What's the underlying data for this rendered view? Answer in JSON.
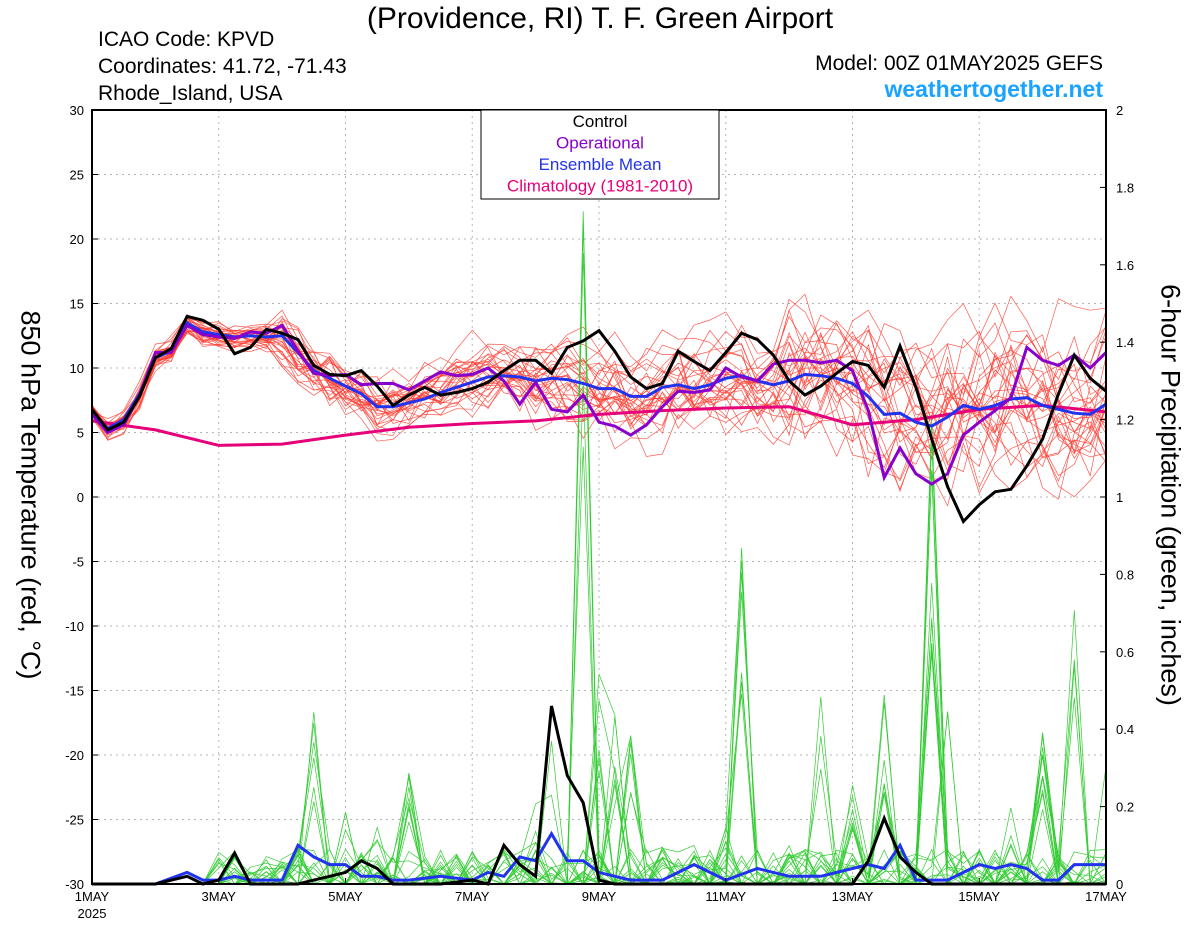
{
  "header": {
    "title": "(Providence, RI) T. F. Green Airport",
    "icao": "ICAO Code: KPVD",
    "coordinates": "Coordinates: 41.72, -71.43",
    "region": "Rhode_Island, USA",
    "model": "Model: 00Z 01MAY2025 GEFS",
    "website": "weathertogether.net"
  },
  "chart_data": {
    "type": "line",
    "title": "(Providence, RI) T. F. Green Airport",
    "ylabel": "850 hPa Temperature (red, °C)",
    "y2label": "6-hour Precipitation (green, inches)",
    "ylim": [
      -30,
      30
    ],
    "y2lim": [
      0,
      2
    ],
    "x_unit": "days since 1MAY 2025 00Z",
    "xlim": [
      0,
      16
    ],
    "x_ticks": [
      {
        "x": 0,
        "label": "1MAY",
        "sub": "2025"
      },
      {
        "x": 2,
        "label": "3MAY",
        "sub": ""
      },
      {
        "x": 4,
        "label": "5MAY",
        "sub": ""
      },
      {
        "x": 6,
        "label": "7MAY",
        "sub": ""
      },
      {
        "x": 8,
        "label": "9MAY",
        "sub": ""
      },
      {
        "x": 10,
        "label": "11MAY",
        "sub": ""
      },
      {
        "x": 12,
        "label": "13MAY",
        "sub": ""
      },
      {
        "x": 14,
        "label": "15MAY",
        "sub": ""
      },
      {
        "x": 16,
        "label": "17MAY",
        "sub": ""
      }
    ],
    "y_ticks": [
      -30,
      -25,
      -20,
      -15,
      -10,
      -5,
      0,
      5,
      10,
      15,
      20,
      25,
      30
    ],
    "y2_ticks": [
      0,
      0.2,
      0.4,
      0.6,
      0.8,
      1,
      1.2,
      1.4,
      1.6,
      1.8,
      2
    ],
    "grid": true,
    "legend": {
      "position": "top-center",
      "items": [
        {
          "label": "Control",
          "color": "#000000"
        },
        {
          "label": "Operational",
          "color": "#8800cc"
        },
        {
          "label": "Ensemble Mean",
          "color": "#2233ee"
        },
        {
          "label": "Climatology (1981-2010)",
          "color": "#e6007a"
        }
      ]
    },
    "colors": {
      "members_temp": "#ff3b30",
      "members_precip": "#33cc33",
      "control": "#000000",
      "operational": "#8800cc",
      "mean": "#2233ee",
      "climatology": "#e6007a"
    },
    "temperature": {
      "control": [
        [
          0,
          6.8
        ],
        [
          0.25,
          5.2
        ],
        [
          0.5,
          5.8
        ],
        [
          0.75,
          7.8
        ],
        [
          1,
          10.8
        ],
        [
          1.25,
          11.5
        ],
        [
          1.5,
          14
        ],
        [
          1.75,
          13.7
        ],
        [
          2,
          13
        ],
        [
          2.25,
          11.1
        ],
        [
          2.5,
          11.6
        ],
        [
          2.75,
          13
        ],
        [
          3,
          12.7
        ],
        [
          3.25,
          12.2
        ],
        [
          3.5,
          10.2
        ],
        [
          3.75,
          9.5
        ],
        [
          4,
          9.4
        ],
        [
          4.25,
          9.8
        ],
        [
          4.5,
          8.6
        ],
        [
          4.75,
          7.1
        ],
        [
          5,
          7.9
        ],
        [
          5.25,
          8.5
        ],
        [
          5.5,
          7.9
        ],
        [
          5.75,
          8.1
        ],
        [
          6,
          8.4
        ],
        [
          6.25,
          8.9
        ],
        [
          6.5,
          9.8
        ],
        [
          6.75,
          10.6
        ],
        [
          7,
          10.6
        ],
        [
          7.25,
          9.6
        ],
        [
          7.5,
          11.6
        ],
        [
          7.75,
          12.1
        ],
        [
          8,
          12.9
        ],
        [
          8.25,
          11.3
        ],
        [
          8.5,
          9.3
        ],
        [
          8.75,
          8.4
        ],
        [
          9,
          8.8
        ],
        [
          9.25,
          11.3
        ],
        [
          9.5,
          10.5
        ],
        [
          9.75,
          9.8
        ],
        [
          10,
          11.2
        ],
        [
          10.25,
          12.7
        ],
        [
          10.5,
          12.2
        ],
        [
          10.75,
          11
        ],
        [
          11,
          9
        ],
        [
          11.25,
          7.9
        ],
        [
          11.5,
          8.6
        ],
        [
          11.75,
          9.6
        ],
        [
          12,
          10.5
        ],
        [
          12.25,
          10.2
        ],
        [
          12.5,
          8.5
        ],
        [
          12.75,
          11.7
        ],
        [
          13,
          8.5
        ],
        [
          13.25,
          4.5
        ],
        [
          13.5,
          0.8
        ],
        [
          13.75,
          -1.9
        ],
        [
          14,
          -0.6
        ],
        [
          14.25,
          0.4
        ],
        [
          14.5,
          0.6
        ],
        [
          14.75,
          2.4
        ],
        [
          15,
          4.5
        ],
        [
          15.25,
          8
        ],
        [
          15.5,
          11
        ],
        [
          15.75,
          9.2
        ],
        [
          16,
          8.2
        ]
      ],
      "operational": [
        [
          0,
          6.4
        ],
        [
          0.25,
          5
        ],
        [
          0.5,
          5.6
        ],
        [
          0.75,
          7.9
        ],
        [
          1,
          11.2
        ],
        [
          1.25,
          11.2
        ],
        [
          1.5,
          13.3
        ],
        [
          1.75,
          12.6
        ],
        [
          2,
          12.4
        ],
        [
          2.25,
          12.3
        ],
        [
          2.5,
          12.8
        ],
        [
          2.75,
          12.7
        ],
        [
          3,
          13.3
        ],
        [
          3.25,
          11.3
        ],
        [
          3.5,
          9.6
        ],
        [
          3.75,
          9.4
        ],
        [
          4,
          9.5
        ],
        [
          4.25,
          8.7
        ],
        [
          4.5,
          8.8
        ],
        [
          4.75,
          8.8
        ],
        [
          5,
          8.3
        ],
        [
          5.25,
          9
        ],
        [
          5.5,
          9.7
        ],
        [
          5.75,
          9.4
        ],
        [
          6,
          9.5
        ],
        [
          6.25,
          10
        ],
        [
          6.5,
          9
        ],
        [
          6.75,
          7.2
        ],
        [
          7,
          8.9
        ],
        [
          7.25,
          6.8
        ],
        [
          7.5,
          6.6
        ],
        [
          7.75,
          7.9
        ],
        [
          8,
          5.8
        ],
        [
          8.25,
          5.5
        ],
        [
          8.5,
          4.8
        ],
        [
          8.75,
          5.6
        ],
        [
          9,
          7
        ],
        [
          9.25,
          8.2
        ],
        [
          9.5,
          8.1
        ],
        [
          9.75,
          8.3
        ],
        [
          10,
          10
        ],
        [
          10.25,
          9.3
        ],
        [
          10.5,
          9
        ],
        [
          10.75,
          10.3
        ],
        [
          11,
          10.6
        ],
        [
          11.25,
          10.6
        ],
        [
          11.5,
          10.4
        ],
        [
          11.75,
          10.6
        ],
        [
          12,
          9.8
        ],
        [
          12.25,
          6.7
        ],
        [
          12.5,
          1.5
        ],
        [
          12.75,
          3.8
        ],
        [
          13,
          1.8
        ],
        [
          13.25,
          1
        ],
        [
          13.5,
          1.8
        ],
        [
          13.75,
          4.8
        ],
        [
          14,
          5.8
        ],
        [
          14.25,
          6.7
        ],
        [
          14.5,
          7.7
        ],
        [
          14.75,
          11.6
        ],
        [
          15,
          10.6
        ],
        [
          15.25,
          10.2
        ],
        [
          15.5,
          11
        ],
        [
          15.75,
          10
        ],
        [
          16,
          11.2
        ]
      ],
      "mean": [
        [
          0,
          6.6
        ],
        [
          0.25,
          5.3
        ],
        [
          0.5,
          6
        ],
        [
          0.75,
          8
        ],
        [
          1,
          10.8
        ],
        [
          1.25,
          11.3
        ],
        [
          1.5,
          13.5
        ],
        [
          1.75,
          12.8
        ],
        [
          2,
          12.6
        ],
        [
          2.25,
          12.4
        ],
        [
          2.5,
          12.5
        ],
        [
          2.75,
          12.4
        ],
        [
          3,
          12.5
        ],
        [
          3.25,
          11.2
        ],
        [
          3.5,
          9.8
        ],
        [
          3.75,
          9.2
        ],
        [
          4,
          8.6
        ],
        [
          4.25,
          8
        ],
        [
          4.5,
          7
        ],
        [
          4.75,
          7
        ],
        [
          5,
          7.3
        ],
        [
          5.25,
          7.6
        ],
        [
          5.5,
          8.1
        ],
        [
          5.75,
          8.5
        ],
        [
          6,
          8.9
        ],
        [
          6.25,
          9.3
        ],
        [
          6.5,
          9.4
        ],
        [
          6.75,
          9.3
        ],
        [
          7,
          9
        ],
        [
          7.25,
          9.2
        ],
        [
          7.5,
          9.1
        ],
        [
          7.75,
          8.8
        ],
        [
          8,
          8.4
        ],
        [
          8.25,
          8.4
        ],
        [
          8.5,
          7.8
        ],
        [
          8.75,
          7.8
        ],
        [
          9,
          8.5
        ],
        [
          9.25,
          8.7
        ],
        [
          9.5,
          8.4
        ],
        [
          9.75,
          8.7
        ],
        [
          10,
          9.2
        ],
        [
          10.25,
          9.4
        ],
        [
          10.5,
          9
        ],
        [
          10.75,
          8.7
        ],
        [
          11,
          9
        ],
        [
          11.25,
          9.5
        ],
        [
          11.5,
          9.4
        ],
        [
          11.75,
          9.2
        ],
        [
          12,
          8.8
        ],
        [
          12.25,
          7.8
        ],
        [
          12.5,
          6.4
        ],
        [
          12.75,
          6.5
        ],
        [
          13,
          5.8
        ],
        [
          13.25,
          5.5
        ],
        [
          13.5,
          6.2
        ],
        [
          13.75,
          7.1
        ],
        [
          14,
          6.8
        ],
        [
          14.25,
          7.1
        ],
        [
          14.5,
          7.6
        ],
        [
          14.75,
          7.7
        ],
        [
          15,
          7.1
        ],
        [
          15.25,
          6.8
        ],
        [
          15.5,
          6.5
        ],
        [
          15.75,
          6.4
        ],
        [
          16,
          7.2
        ]
      ],
      "climatology": [
        [
          0,
          5.9
        ],
        [
          1,
          5.2
        ],
        [
          2,
          4
        ],
        [
          3,
          4.1
        ],
        [
          4,
          4.8
        ],
        [
          5,
          5.4
        ],
        [
          6,
          5.7
        ],
        [
          7,
          5.9
        ],
        [
          8,
          6.4
        ],
        [
          9,
          6.7
        ],
        [
          10,
          6.9
        ],
        [
          11,
          7
        ],
        [
          12,
          5.6
        ],
        [
          13,
          6
        ],
        [
          14,
          6.8
        ],
        [
          15,
          7.1
        ],
        [
          16,
          6.6
        ]
      ]
    },
    "precipitation": {
      "control": [
        [
          0,
          0
        ],
        [
          0.5,
          0
        ],
        [
          1,
          0
        ],
        [
          1.5,
          0.02
        ],
        [
          1.75,
          0
        ],
        [
          2,
          0.01
        ],
        [
          2.25,
          0.08
        ],
        [
          2.5,
          0
        ],
        [
          3,
          0
        ],
        [
          3.25,
          0
        ],
        [
          3.5,
          0.01
        ],
        [
          3.75,
          0.02
        ],
        [
          4,
          0.03
        ],
        [
          4.25,
          0.06
        ],
        [
          4.5,
          0.04
        ],
        [
          4.75,
          0
        ],
        [
          5,
          0
        ],
        [
          5.5,
          0
        ],
        [
          6,
          0.01
        ],
        [
          6.25,
          0
        ],
        [
          6.5,
          0.1
        ],
        [
          6.75,
          0.05
        ],
        [
          7,
          0.02
        ],
        [
          7.25,
          0.46
        ],
        [
          7.5,
          0.28
        ],
        [
          7.75,
          0.21
        ],
        [
          8,
          0.01
        ],
        [
          8.25,
          0
        ],
        [
          8.5,
          0
        ],
        [
          9,
          0
        ],
        [
          10,
          0
        ],
        [
          11,
          0
        ],
        [
          12,
          0
        ],
        [
          12.25,
          0.06
        ],
        [
          12.5,
          0.17
        ],
        [
          12.75,
          0.07
        ],
        [
          13,
          0.03
        ],
        [
          13.25,
          0
        ],
        [
          14,
          0
        ],
        [
          15,
          0
        ],
        [
          16,
          0
        ]
      ],
      "mean": [
        [
          0,
          0
        ],
        [
          0.5,
          0
        ],
        [
          1,
          0
        ],
        [
          1.5,
          0.03
        ],
        [
          1.75,
          0.01
        ],
        [
          2,
          0.01
        ],
        [
          2.25,
          0.02
        ],
        [
          2.5,
          0.01
        ],
        [
          3,
          0.01
        ],
        [
          3.25,
          0.1
        ],
        [
          3.5,
          0.07
        ],
        [
          3.75,
          0.05
        ],
        [
          4,
          0.05
        ],
        [
          4.25,
          0.02
        ],
        [
          4.5,
          0.02
        ],
        [
          4.75,
          0.01
        ],
        [
          5,
          0.01
        ],
        [
          5.5,
          0.02
        ],
        [
          6,
          0.01
        ],
        [
          6.25,
          0.03
        ],
        [
          6.5,
          0.02
        ],
        [
          6.75,
          0.07
        ],
        [
          7,
          0.06
        ],
        [
          7.25,
          0.13
        ],
        [
          7.5,
          0.06
        ],
        [
          7.75,
          0.06
        ],
        [
          8,
          0.03
        ],
        [
          8.25,
          0.02
        ],
        [
          8.5,
          0.01
        ],
        [
          9,
          0.01
        ],
        [
          9.5,
          0.05
        ],
        [
          10,
          0.01
        ],
        [
          10.5,
          0.04
        ],
        [
          11,
          0.02
        ],
        [
          11.5,
          0.02
        ],
        [
          12,
          0.04
        ],
        [
          12.25,
          0.05
        ],
        [
          12.5,
          0.04
        ],
        [
          12.75,
          0.1
        ],
        [
          13,
          0.01
        ],
        [
          13.5,
          0.01
        ],
        [
          14,
          0.05
        ],
        [
          14.25,
          0.04
        ],
        [
          14.5,
          0.05
        ],
        [
          14.75,
          0.04
        ],
        [
          15,
          0.01
        ],
        [
          15.25,
          0.01
        ],
        [
          15.5,
          0.05
        ],
        [
          15.75,
          0.05
        ],
        [
          16,
          0.05
        ]
      ]
    }
  }
}
